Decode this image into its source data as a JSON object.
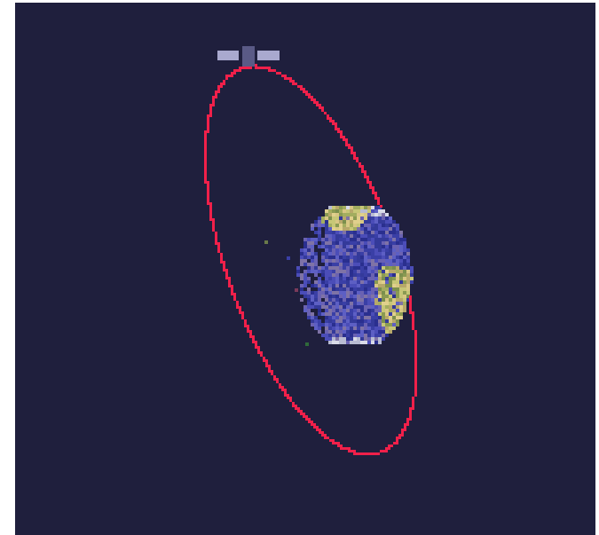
{
  "scene": {
    "background_color": "#1f1f3d",
    "orbit_color": "#f0204a",
    "satellite_panel_color": "#a9a9cf",
    "satellite_body_color": "#5a5a86",
    "planet": {
      "ocean_colors": [
        "#2a2f8f",
        "#3a3fa6",
        "#4b4db8",
        "#5d5fc4",
        "#6a62b2",
        "#7f73a6",
        "#343a9a"
      ],
      "land_colors": [
        "#8a9a52",
        "#a3ad5f",
        "#c7c777",
        "#d8c784",
        "#7b8f4d",
        "#b7a86a",
        "#e0d08c"
      ],
      "ice_colors": [
        "#d9dbe8",
        "#b9bcd2"
      ]
    },
    "icons": {
      "satellite": "satellite-icon",
      "planet": "planet-icon",
      "orbit": "orbit-path"
    }
  }
}
